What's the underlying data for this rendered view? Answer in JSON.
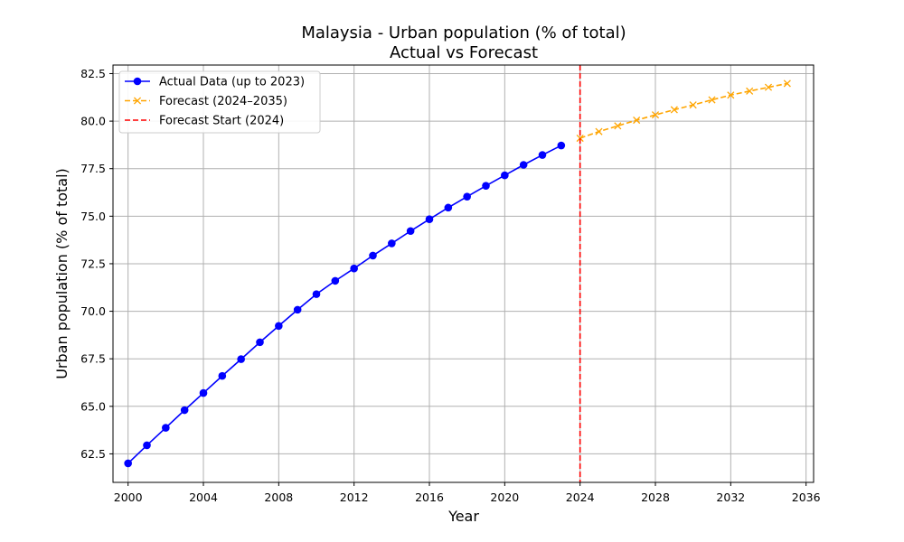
{
  "chart_data": {
    "type": "line",
    "title": "Malaysia - Urban population (% of total)",
    "subtitle": "Actual vs Forecast",
    "xlabel": "Year",
    "ylabel": "Urban population (% of total)",
    "xlim": [
      1999.2,
      2036.4
    ],
    "ylim": [
      61.0,
      82.95
    ],
    "x_ticks": [
      2000,
      2004,
      2008,
      2012,
      2016,
      2020,
      2024,
      2028,
      2032,
      2036
    ],
    "x_tick_labels": [
      "2000",
      "2004",
      "2008",
      "2012",
      "2016",
      "2020",
      "2024",
      "2028",
      "2032",
      "2036"
    ],
    "y_ticks": [
      62.5,
      65.0,
      67.5,
      70.0,
      72.5,
      75.0,
      77.5,
      80.0,
      82.5
    ],
    "y_tick_labels": [
      "62.5",
      "65.0",
      "67.5",
      "70.0",
      "72.5",
      "75.0",
      "77.5",
      "80.0",
      "82.5"
    ],
    "grid": true,
    "legend_position": "top-left",
    "series": [
      {
        "name": "Actual Data (up to 2023)",
        "color": "#0000ff",
        "style": "solid",
        "marker": "circle",
        "x": [
          2000,
          2001,
          2002,
          2003,
          2004,
          2005,
          2006,
          2007,
          2008,
          2009,
          2010,
          2011,
          2012,
          2013,
          2014,
          2015,
          2016,
          2017,
          2018,
          2019,
          2020,
          2021,
          2022,
          2023
        ],
        "y": [
          62.0,
          62.95,
          63.87,
          64.8,
          65.7,
          66.6,
          67.48,
          68.37,
          69.23,
          70.08,
          70.9,
          71.6,
          72.25,
          72.93,
          73.57,
          74.22,
          74.84,
          75.45,
          76.03,
          76.6,
          77.15,
          77.7,
          78.22,
          78.72
        ]
      },
      {
        "name": "Forecast (2024–2035)",
        "color": "#ffa500",
        "style": "dashed",
        "marker": "x",
        "x": [
          2024,
          2025,
          2026,
          2027,
          2028,
          2029,
          2030,
          2031,
          2032,
          2033,
          2034,
          2035
        ],
        "y": [
          79.1,
          79.45,
          79.75,
          80.05,
          80.33,
          80.6,
          80.85,
          81.12,
          81.37,
          81.58,
          81.78,
          81.98
        ]
      }
    ],
    "reference_lines": [
      {
        "name": "Forecast Start (2024)",
        "x": 2024,
        "color": "#ff0000",
        "style": "dashed"
      }
    ]
  }
}
